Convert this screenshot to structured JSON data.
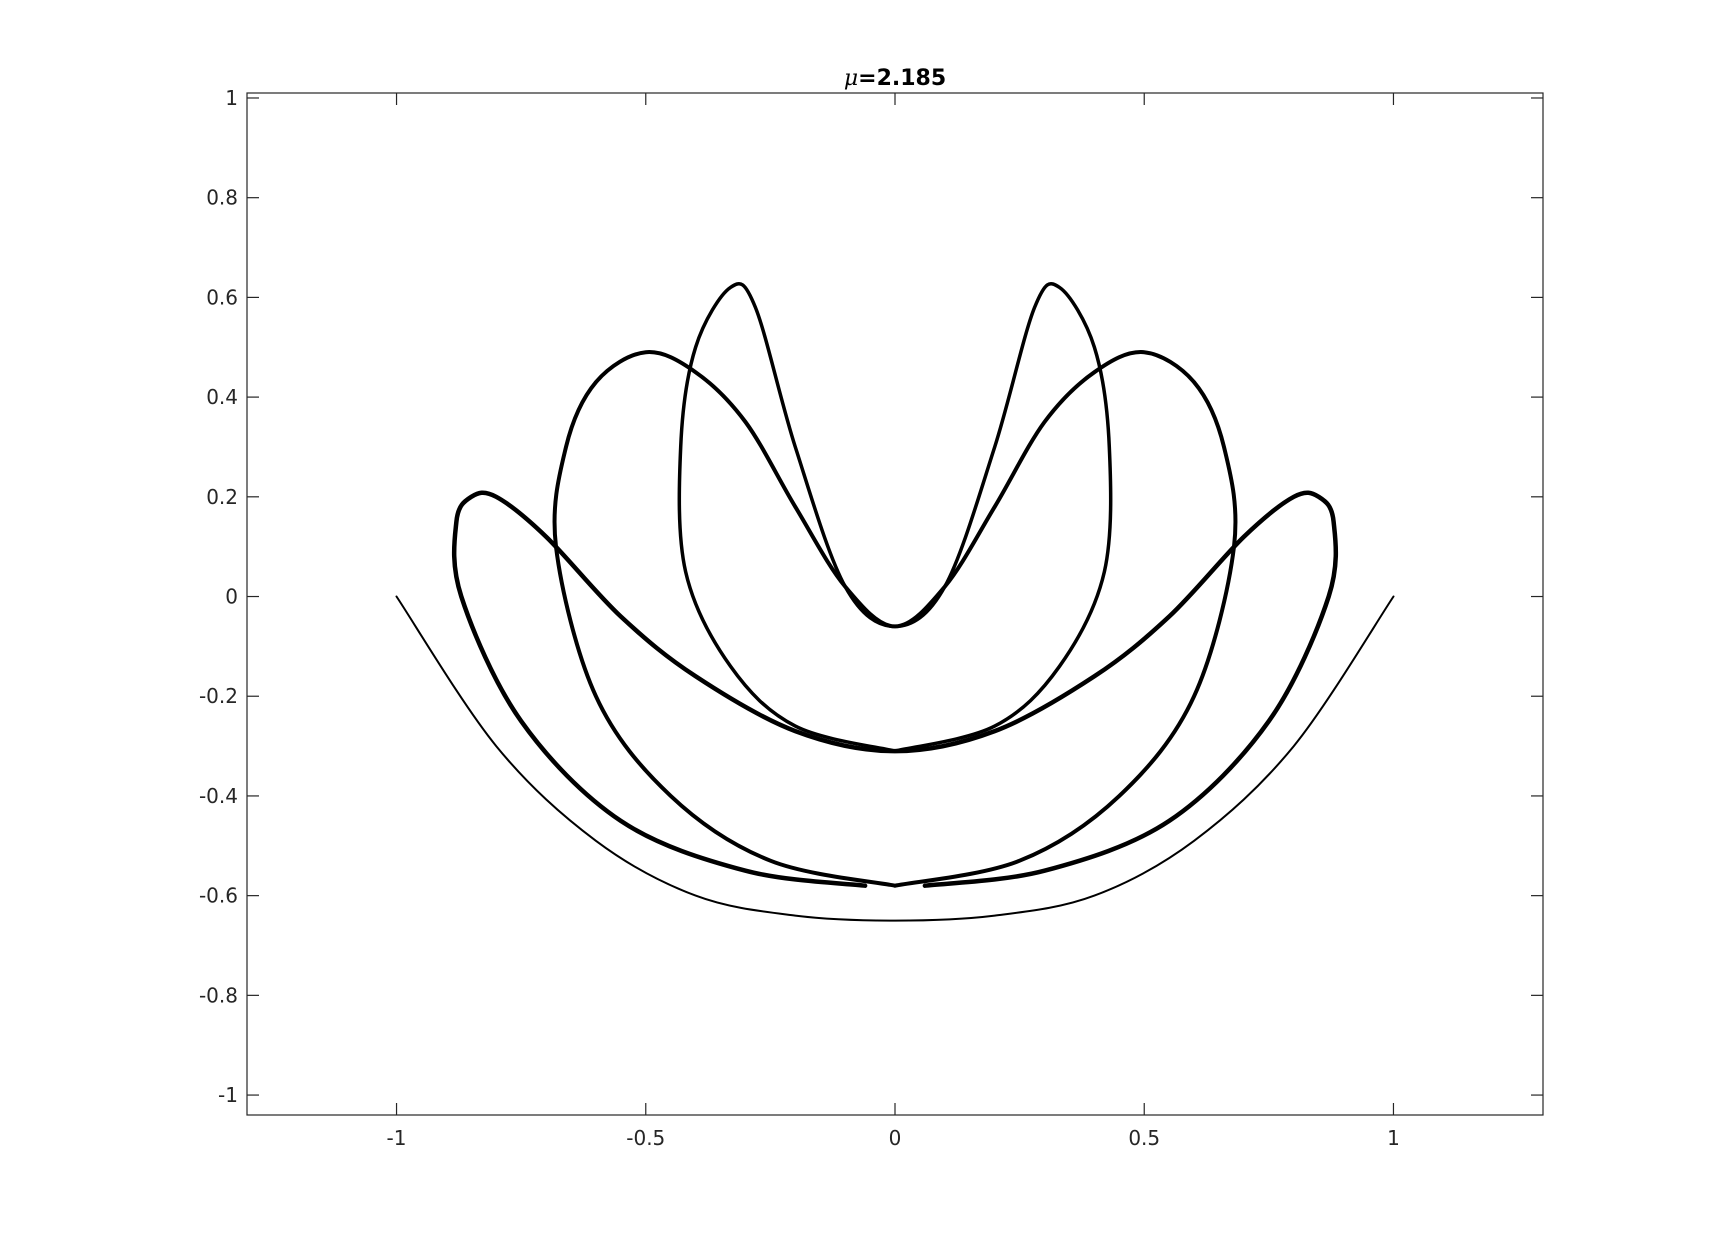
{
  "chart_data": {
    "type": "line",
    "title_symbol": "μ",
    "title_value": "=2.185",
    "xlabel": "",
    "ylabel": "",
    "xlim": [
      -1.3,
      1.3
    ],
    "ylim": [
      -1.04,
      1.01
    ],
    "xticks": [
      -1,
      -0.5,
      0,
      0.5,
      1
    ],
    "xtick_labels": [
      "-1",
      "-0.5",
      "0",
      "0.5",
      "1"
    ],
    "yticks": [
      1,
      0.8,
      0.6,
      0.4,
      0.2,
      0,
      -0.2,
      -0.4,
      -0.6,
      -0.8,
      -1
    ],
    "ytick_labels": [
      "1",
      "0.8",
      "0.6",
      "0.4",
      "0.2",
      "0",
      "-0.2",
      "-0.4",
      "-0.6",
      "-0.8",
      "-1"
    ],
    "grid": false,
    "legend": "none",
    "line_color": "#000000",
    "series": [
      {
        "points": [
          [
            -1,
            0
          ],
          [
            -0.8,
            -0.3
          ],
          [
            -0.6,
            -0.49
          ],
          [
            -0.4,
            -0.6
          ],
          [
            -0.2,
            -0.64
          ],
          [
            0,
            -0.65
          ],
          [
            0.2,
            -0.64
          ],
          [
            0.4,
            -0.6
          ],
          [
            0.6,
            -0.49
          ],
          [
            0.8,
            -0.3
          ],
          [
            1,
            0
          ]
        ]
      },
      {
        "points": [
          [
            -0.06,
            -0.58
          ],
          [
            -0.3,
            -0.55
          ],
          [
            -0.55,
            -0.45
          ],
          [
            -0.75,
            -0.25
          ],
          [
            -0.87,
            0
          ],
          [
            -0.88,
            0.15
          ],
          [
            -0.85,
            0.2
          ],
          [
            -0.8,
            0.2
          ],
          [
            -0.7,
            0.12
          ],
          [
            -0.55,
            -0.04
          ],
          [
            -0.4,
            -0.16
          ],
          [
            -0.2,
            -0.27
          ],
          [
            0,
            -0.31
          ],
          [
            0.2,
            -0.27
          ],
          [
            0.4,
            -0.16
          ],
          [
            0.55,
            -0.04
          ],
          [
            0.7,
            0.12
          ],
          [
            0.8,
            0.2
          ],
          [
            0.85,
            0.2
          ],
          [
            0.88,
            0.15
          ],
          [
            0.87,
            0
          ],
          [
            0.75,
            -0.25
          ],
          [
            0.55,
            -0.45
          ],
          [
            0.3,
            -0.55
          ],
          [
            0.06,
            -0.58
          ]
        ]
      },
      {
        "points": [
          [
            0,
            -0.58
          ],
          [
            -0.25,
            -0.53
          ],
          [
            -0.45,
            -0.4
          ],
          [
            -0.6,
            -0.2
          ],
          [
            -0.68,
            0.1
          ],
          [
            -0.66,
            0.3
          ],
          [
            -0.6,
            0.43
          ],
          [
            -0.5,
            0.49
          ],
          [
            -0.4,
            0.45
          ],
          [
            -0.3,
            0.35
          ],
          [
            -0.2,
            0.18
          ],
          [
            -0.1,
            0.02
          ],
          [
            0,
            -0.06
          ],
          [
            0.1,
            0.02
          ],
          [
            0.2,
            0.18
          ],
          [
            0.3,
            0.35
          ],
          [
            0.4,
            0.45
          ],
          [
            0.5,
            0.49
          ],
          [
            0.6,
            0.43
          ],
          [
            0.66,
            0.3
          ],
          [
            0.68,
            0.1
          ],
          [
            0.6,
            -0.2
          ],
          [
            0.45,
            -0.4
          ],
          [
            0.25,
            -0.53
          ],
          [
            0,
            -0.58
          ]
        ]
      },
      {
        "points": [
          [
            0,
            -0.31
          ],
          [
            -0.2,
            -0.26
          ],
          [
            -0.33,
            -0.14
          ],
          [
            -0.42,
            0.05
          ],
          [
            -0.43,
            0.3
          ],
          [
            -0.4,
            0.5
          ],
          [
            -0.33,
            0.62
          ],
          [
            -0.28,
            0.58
          ],
          [
            -0.2,
            0.3
          ],
          [
            -0.1,
            0.02
          ],
          [
            0,
            -0.06
          ],
          [
            0.1,
            0.02
          ],
          [
            0.2,
            0.3
          ],
          [
            0.28,
            0.58
          ],
          [
            0.33,
            0.62
          ],
          [
            0.4,
            0.5
          ],
          [
            0.43,
            0.3
          ],
          [
            0.42,
            0.05
          ],
          [
            0.33,
            -0.14
          ],
          [
            0.2,
            -0.26
          ],
          [
            0,
            -0.31
          ]
        ]
      }
    ]
  }
}
